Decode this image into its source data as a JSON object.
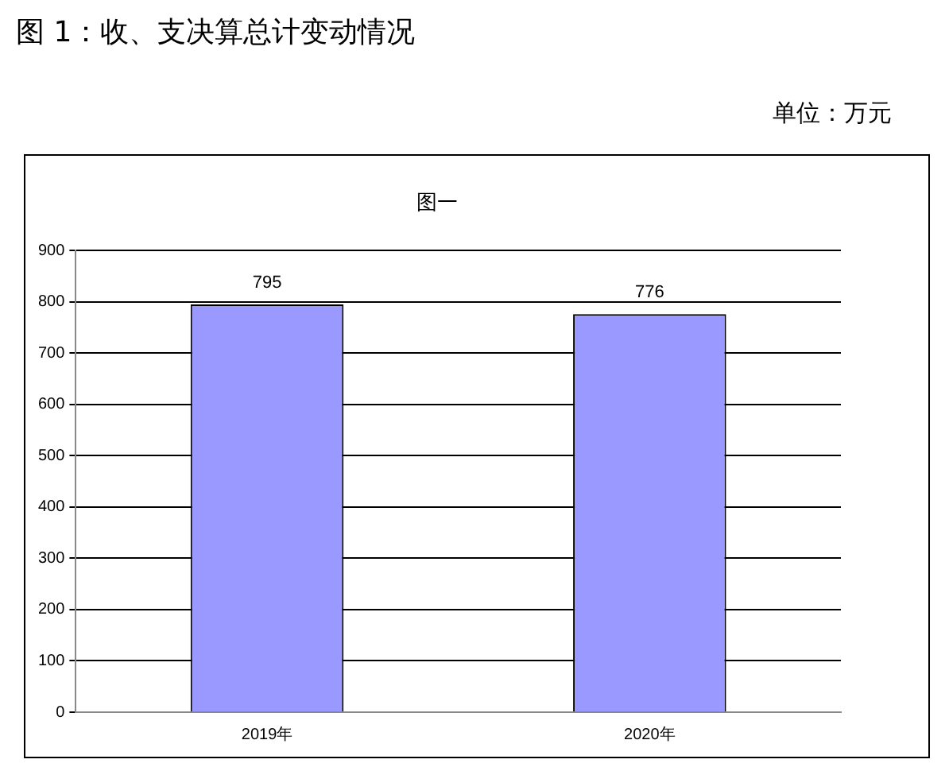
{
  "chart_data": {
    "type": "bar",
    "title": "图 1：收、支决算总计变动情况",
    "subtitle": "图一",
    "annotations": [
      "单位：万元"
    ],
    "categories": [
      "2019年",
      "2020年"
    ],
    "values": [
      795,
      776
    ],
    "color": "#9999ff",
    "ylim": [
      0,
      900
    ],
    "yticks": [
      0,
      100,
      200,
      300,
      400,
      500,
      600,
      700,
      800,
      900
    ],
    "grid": "y",
    "data_labels": true,
    "legend": false
  }
}
